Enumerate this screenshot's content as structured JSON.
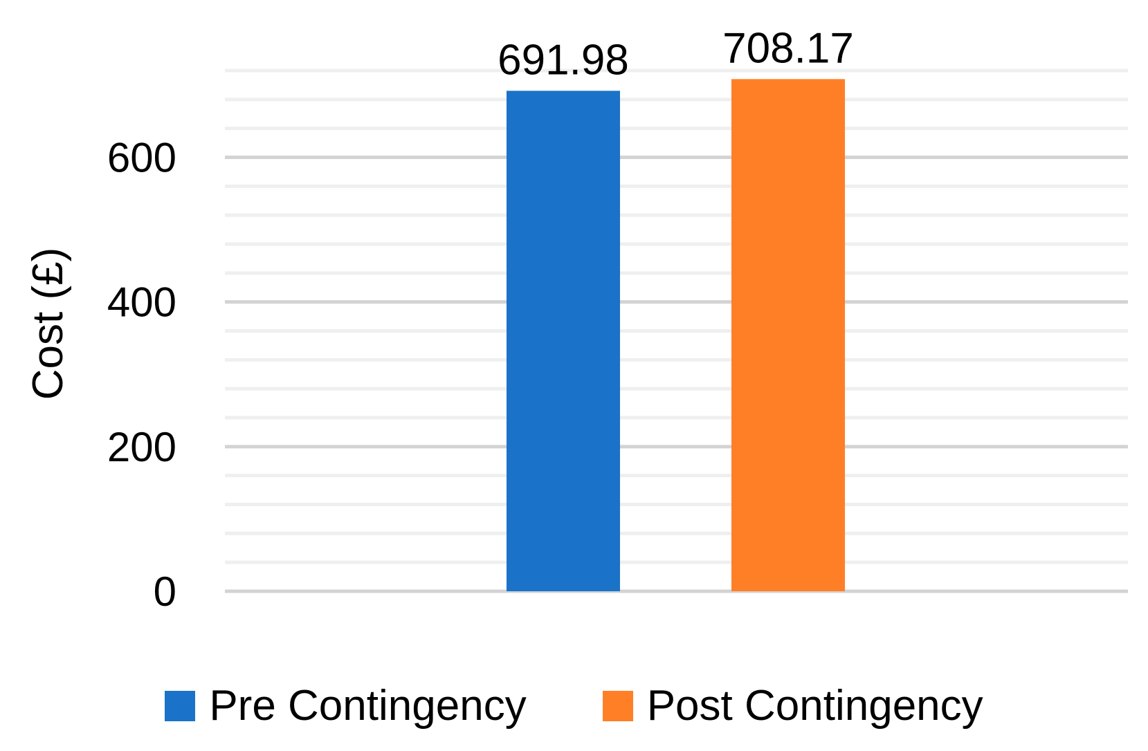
{
  "chart_data": {
    "type": "bar",
    "title": "",
    "xlabel": "",
    "ylabel": "Cost (£)",
    "categories": [
      ""
    ],
    "ylim": [
      0,
      720
    ],
    "yticks": [
      0,
      200,
      400,
      600
    ],
    "grid": true,
    "legend_position": "bottom",
    "series": [
      {
        "name": "Pre Contingency",
        "values": [
          691.98
        ],
        "value_label": "691.98",
        "color": "#1a73c8"
      },
      {
        "name": "Post Contingency",
        "values": [
          708.17
        ],
        "value_label": "708.17",
        "color": "#ff7f27"
      }
    ]
  }
}
